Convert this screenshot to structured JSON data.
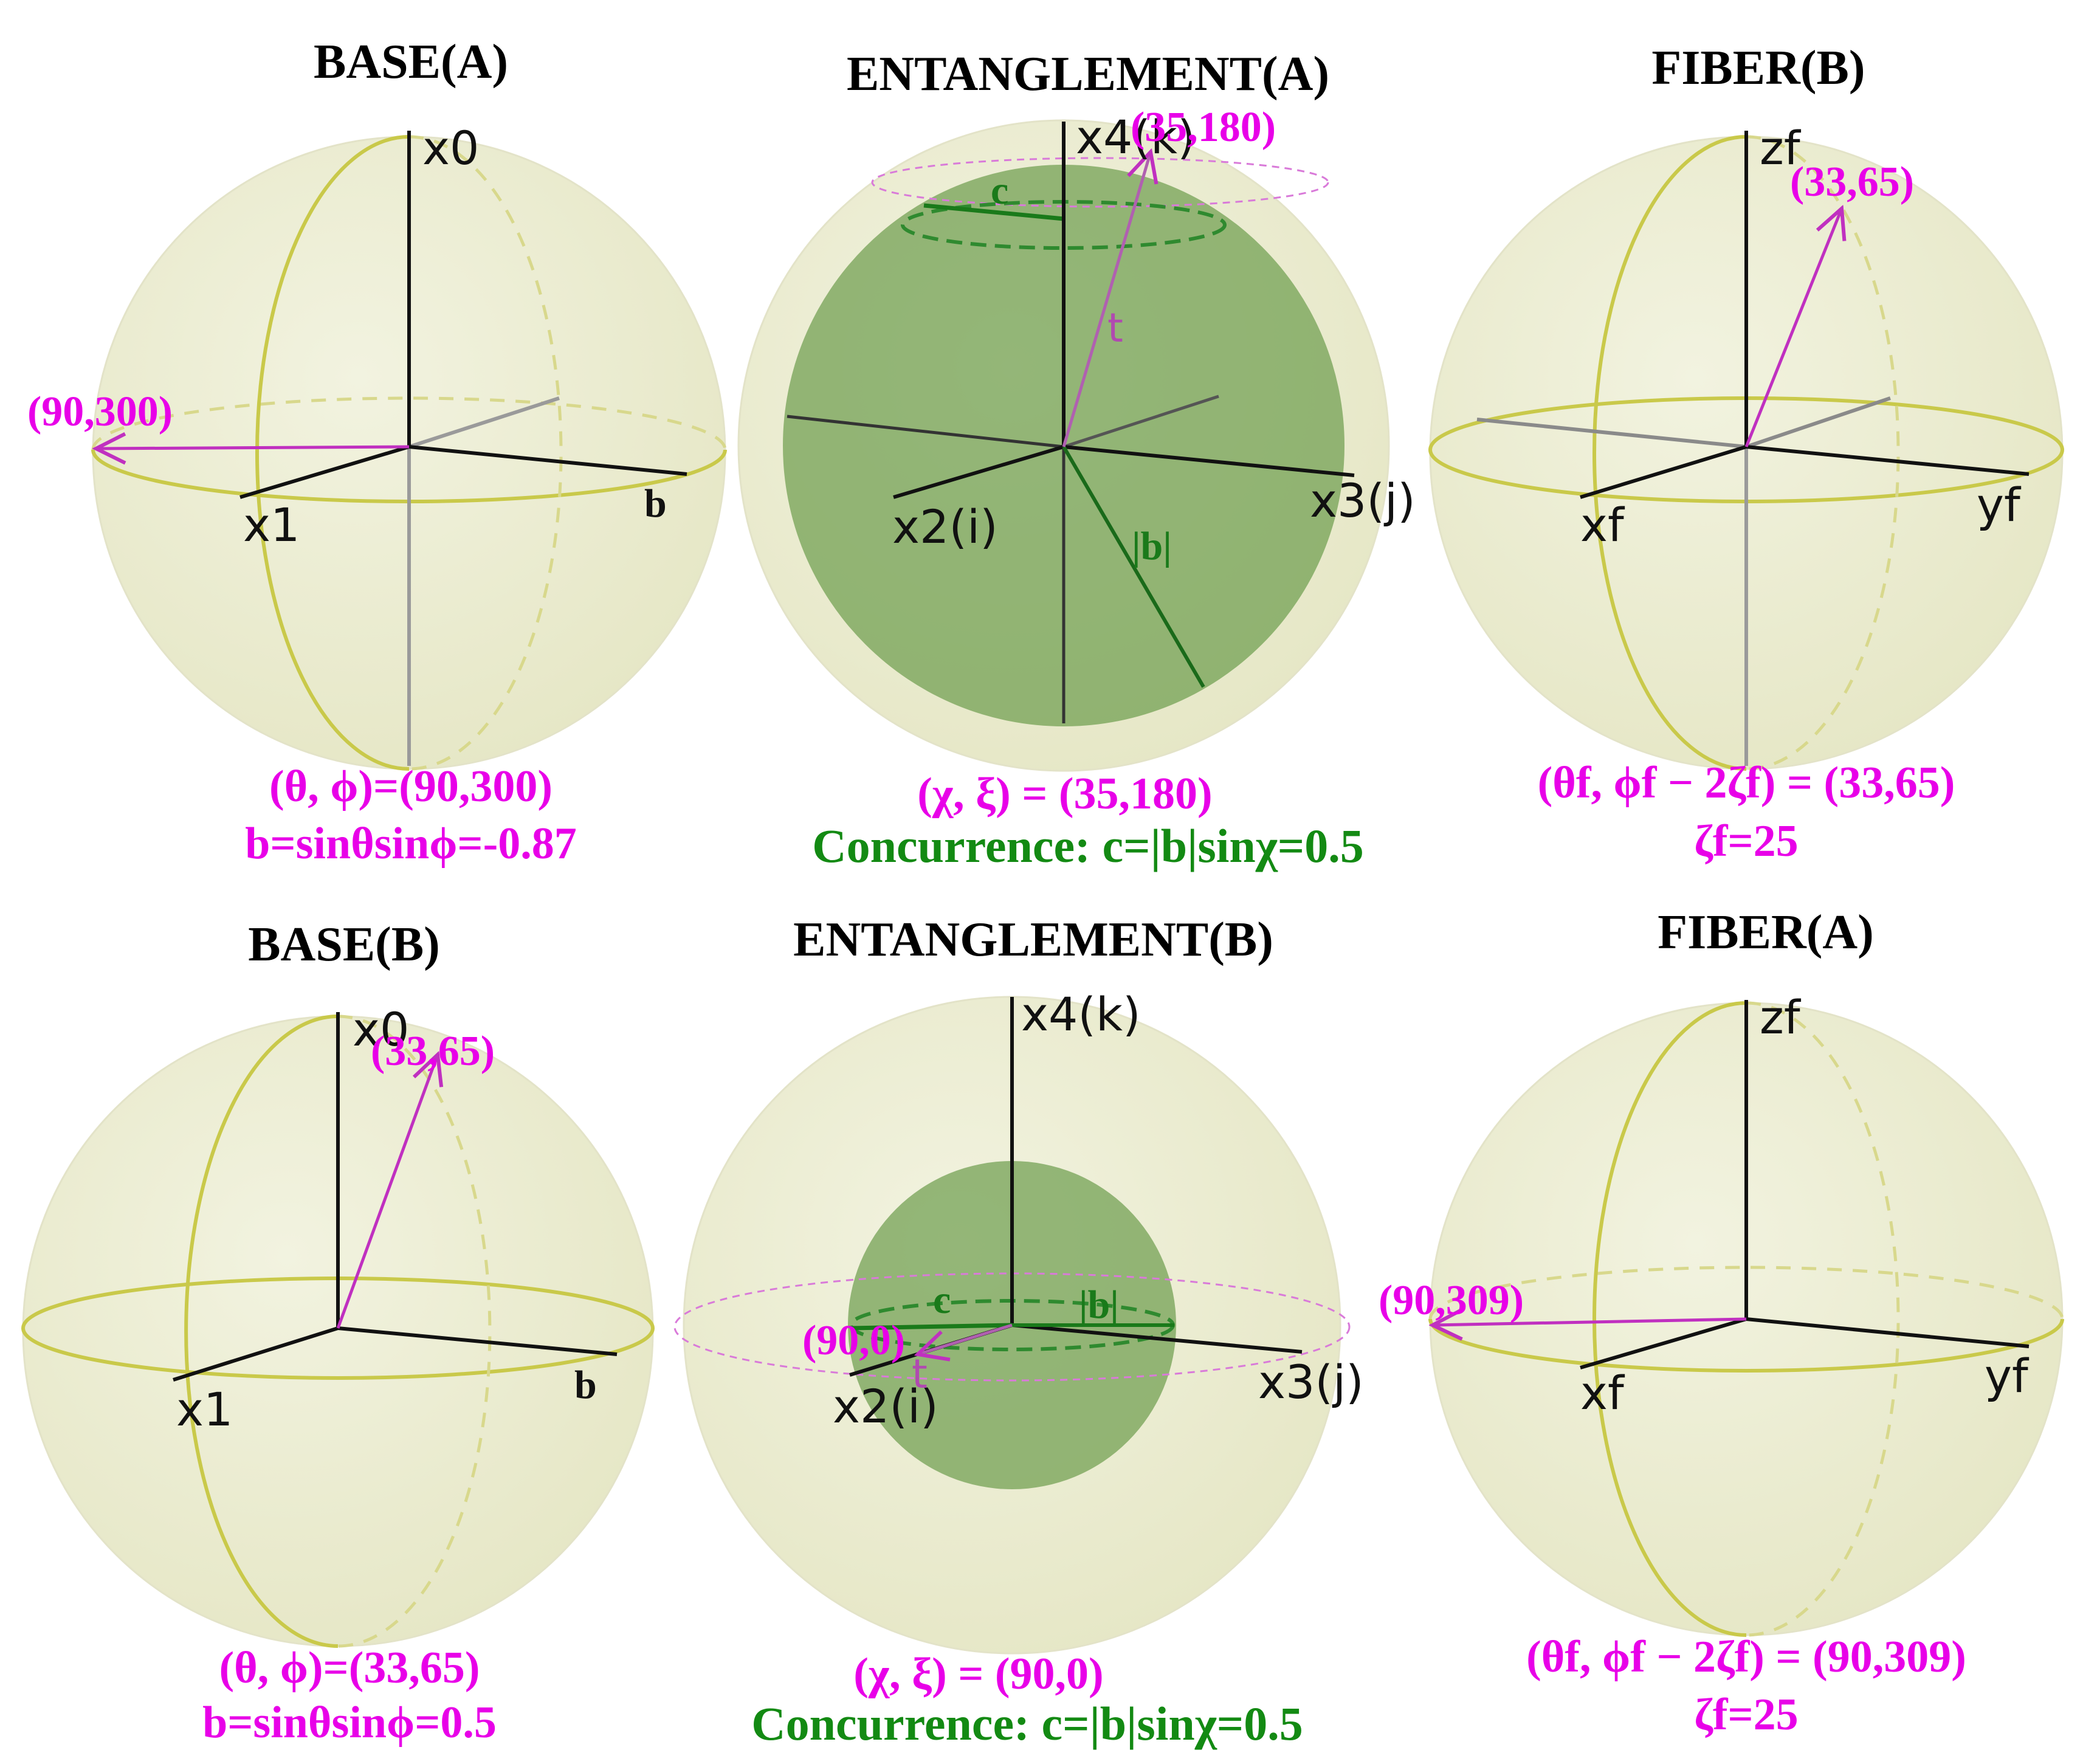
{
  "panels": {
    "base_a": {
      "title": "BASE(A)",
      "axis_vertical": "x0",
      "axis_left": "x1",
      "axis_right": "b",
      "point_label": "(90,300)",
      "caption_line1": "(θ, ϕ)=(90,300)",
      "caption_line2": "b=sinθsinϕ=-0.87"
    },
    "entanglement_a": {
      "title": "ENTANGLEMENT(A)",
      "axis_vertical": "x4(k)",
      "axis_left": "x2(i)",
      "axis_right": "x3(j)",
      "point_label": "(35,180)",
      "c_label": "c",
      "t_label": "t",
      "b_label": "|b|",
      "caption_line1": "(χ, ξ) = (35,180)",
      "caption_line2": "Concurrence: c=|b|sinχ=0.5"
    },
    "fiber_b": {
      "title": "FIBER(B)",
      "axis_vertical": "zf",
      "axis_left": "xf",
      "axis_right": "yf",
      "point_label": "(33,65)",
      "caption_line1": "(θf, ϕf − 2ζf) = (33,65)",
      "caption_line2": "ζf=25"
    },
    "base_b": {
      "title": "BASE(B)",
      "axis_vertical": "x0",
      "axis_left": "x1",
      "axis_right": "b",
      "point_label": "(33,65)",
      "caption_line1": "(θ, ϕ)=(33,65)",
      "caption_line2": "b=sinθsinϕ=0.5"
    },
    "entanglement_b": {
      "title": "ENTANGLEMENT(B)",
      "axis_vertical": "x4(k)",
      "axis_left": "x2(i)",
      "axis_right": "x3(j)",
      "point_label": "(90,0)",
      "c_label": "c",
      "t_label": "t",
      "b_label": "|b|",
      "caption_line1": "(χ, ξ) = (90,0)",
      "caption_line2": "Concurrence: c=|b|sinχ=0.5"
    },
    "fiber_a": {
      "title": "FIBER(A)",
      "axis_vertical": "zf",
      "axis_left": "xf",
      "axis_right": "yf",
      "point_label": "(90,309)",
      "caption_line1": "(θf, ϕf − 2ζf) = (90,309)",
      "caption_line2": "ζf=25"
    }
  },
  "colors": {
    "sphere_fill": "#eeefd6",
    "sphere_edge": "#c9c94a",
    "inner_sphere": "#6f9e4f",
    "vector": "#c030c0",
    "label_magenta": "#e800e8",
    "green_text": "#138a13"
  }
}
